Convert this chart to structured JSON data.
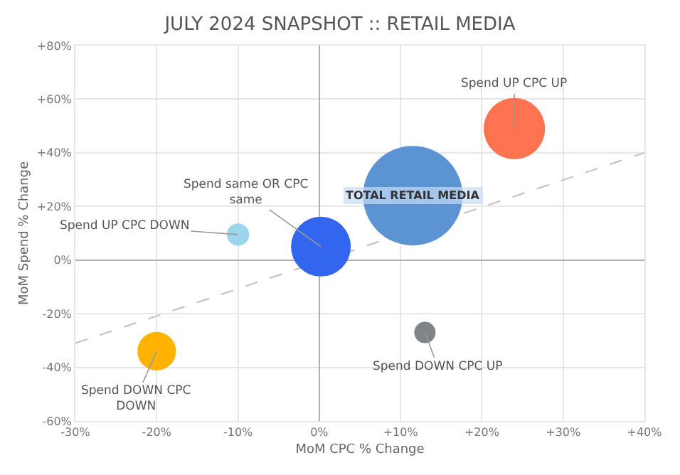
{
  "chart_data": {
    "type": "bubble",
    "title": "JULY 2024 SNAPSHOT :: RETAIL MEDIA",
    "xlabel": "MoM CPC % Change",
    "ylabel": "MoM Spend % Change",
    "xlim": [
      -30,
      40
    ],
    "ylim": [
      -60,
      80
    ],
    "xticks": [
      {
        "value": -30,
        "label": "-30%"
      },
      {
        "value": -20,
        "label": "-20%"
      },
      {
        "value": -10,
        "label": "-10%"
      },
      {
        "value": 0,
        "label": "0%"
      },
      {
        "value": 10,
        "label": "+10%"
      },
      {
        "value": 20,
        "label": "+20%"
      },
      {
        "value": 30,
        "label": "+30%"
      },
      {
        "value": 40,
        "label": "+40%"
      }
    ],
    "yticks": [
      {
        "value": -60,
        "label": "-60%"
      },
      {
        "value": -40,
        "label": "-40%"
      },
      {
        "value": -20,
        "label": "-20%"
      },
      {
        "value": 0,
        "label": "0%"
      },
      {
        "value": 20,
        "label": "+20%"
      },
      {
        "value": 40,
        "label": "+40%"
      },
      {
        "value": 60,
        "label": "+60%"
      },
      {
        "value": 80,
        "label": "+80%"
      }
    ],
    "grid": true,
    "legend": false,
    "series": [
      {
        "name": "Spend UP CPC UP",
        "color": "#ff7350",
        "x": [
          24
        ],
        "values": [
          49
        ],
        "sizes": [
          0.38
        ]
      },
      {
        "name": "TOTAL RETAIL MEDIA",
        "color": "#5b93d3",
        "x": [
          11.5
        ],
        "values": [
          24
        ],
        "sizes": [
          1
        ]
      },
      {
        "name": "Spend same OR CPC same",
        "color": "#3366ee",
        "x": [
          0.2
        ],
        "values": [
          5
        ],
        "sizes": [
          0.36
        ]
      },
      {
        "name": "Spend UP CPC DOWN",
        "color": "#9dd5ec",
        "x": [
          -10
        ],
        "values": [
          9.5
        ],
        "sizes": [
          0.05
        ]
      },
      {
        "name": "Spend DOWN CPC DOWN",
        "color": "#ffb300",
        "x": [
          -20
        ],
        "values": [
          -34
        ],
        "sizes": [
          0.15
        ]
      },
      {
        "name": "Spend DOWN CPC UP",
        "color": "#7f8487",
        "x": [
          13
        ],
        "values": [
          -27
        ],
        "sizes": [
          0.046
        ]
      },
      {
        "type": "line",
        "color": "#c0c0c0",
        "line_style": "dashed",
        "marker": "none",
        "x": [
          -30,
          40
        ],
        "values": [
          -31,
          40
        ]
      }
    ]
  }
}
